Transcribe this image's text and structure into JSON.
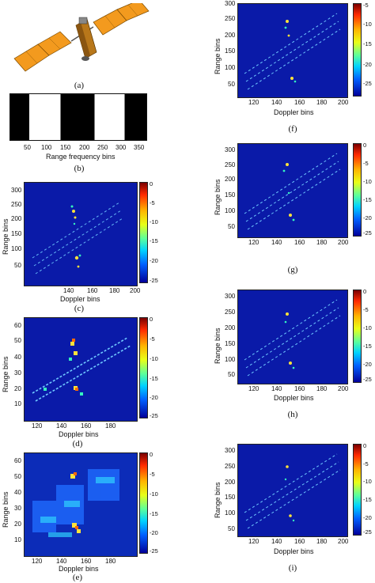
{
  "panels": {
    "a": {
      "label": "(a)"
    },
    "b": {
      "label": "(b)",
      "xlabel": "Range frequency bins",
      "xticks": [
        "50",
        "100",
        "150",
        "200",
        "250",
        "300",
        "350"
      ]
    },
    "c": {
      "label": "(c)",
      "xlabel": "Doppler bins",
      "ylabel": "Range bins",
      "xticks": [
        "140",
        "160",
        "180",
        "200"
      ],
      "yticks": [
        "300",
        "250",
        "200",
        "150",
        "100",
        "50"
      ],
      "cbar": [
        "0",
        "-5",
        "-10",
        "-15",
        "-20",
        "-25"
      ]
    },
    "d": {
      "label": "(d)",
      "xlabel": "Doppler bins",
      "ylabel": "Range bins",
      "xticks": [
        "120",
        "140",
        "160",
        "180"
      ],
      "yticks": [
        "60",
        "50",
        "40",
        "30",
        "20",
        "10"
      ],
      "cbar": [
        "0",
        "-5",
        "-10",
        "-15",
        "-20",
        "-25"
      ]
    },
    "e": {
      "label": "(e)",
      "xlabel": "Doppler bins",
      "ylabel": "Range bins",
      "xticks": [
        "120",
        "140",
        "160",
        "180"
      ],
      "yticks": [
        "60",
        "50",
        "40",
        "30",
        "20",
        "10"
      ],
      "cbar": [
        "0",
        "-5",
        "-10",
        "-15",
        "-20",
        "-25"
      ]
    },
    "f": {
      "label": "(f)",
      "xlabel": "Doppler bins",
      "ylabel": "Range bins",
      "xticks": [
        "120",
        "140",
        "160",
        "180",
        "200"
      ],
      "yticks": [
        "300",
        "250",
        "200",
        "150",
        "100",
        "50"
      ],
      "cbar": [
        "-5",
        "-10",
        "-15",
        "-20",
        "-25"
      ]
    },
    "g": {
      "label": "(g)",
      "xlabel": "",
      "ylabel": "Range bins",
      "xticks": [
        "120",
        "140",
        "160",
        "180",
        "200"
      ],
      "yticks": [
        "300",
        "250",
        "200",
        "150",
        "100",
        "50"
      ],
      "cbar": [
        "0",
        "-5",
        "-10",
        "-15",
        "-20",
        "-25"
      ]
    },
    "h": {
      "label": "(h)",
      "xlabel": "Doppler bins",
      "ylabel": "Range bins",
      "xticks": [
        "120",
        "140",
        "160",
        "180",
        "200"
      ],
      "yticks": [
        "300",
        "250",
        "200",
        "150",
        "100",
        "50"
      ],
      "cbar": [
        "0",
        "-5",
        "-10",
        "-15",
        "-20",
        "-25"
      ]
    },
    "i": {
      "label": "(i)",
      "xlabel": "Doppler bins",
      "ylabel": "Range bins",
      "xticks": [
        "120",
        "140",
        "160",
        "180",
        "200"
      ],
      "yticks": [
        "300",
        "250",
        "200",
        "150",
        "100",
        "50"
      ],
      "cbar": [
        "0",
        "-5",
        "-10",
        "-15",
        "-20",
        "-25"
      ]
    }
  }
}
